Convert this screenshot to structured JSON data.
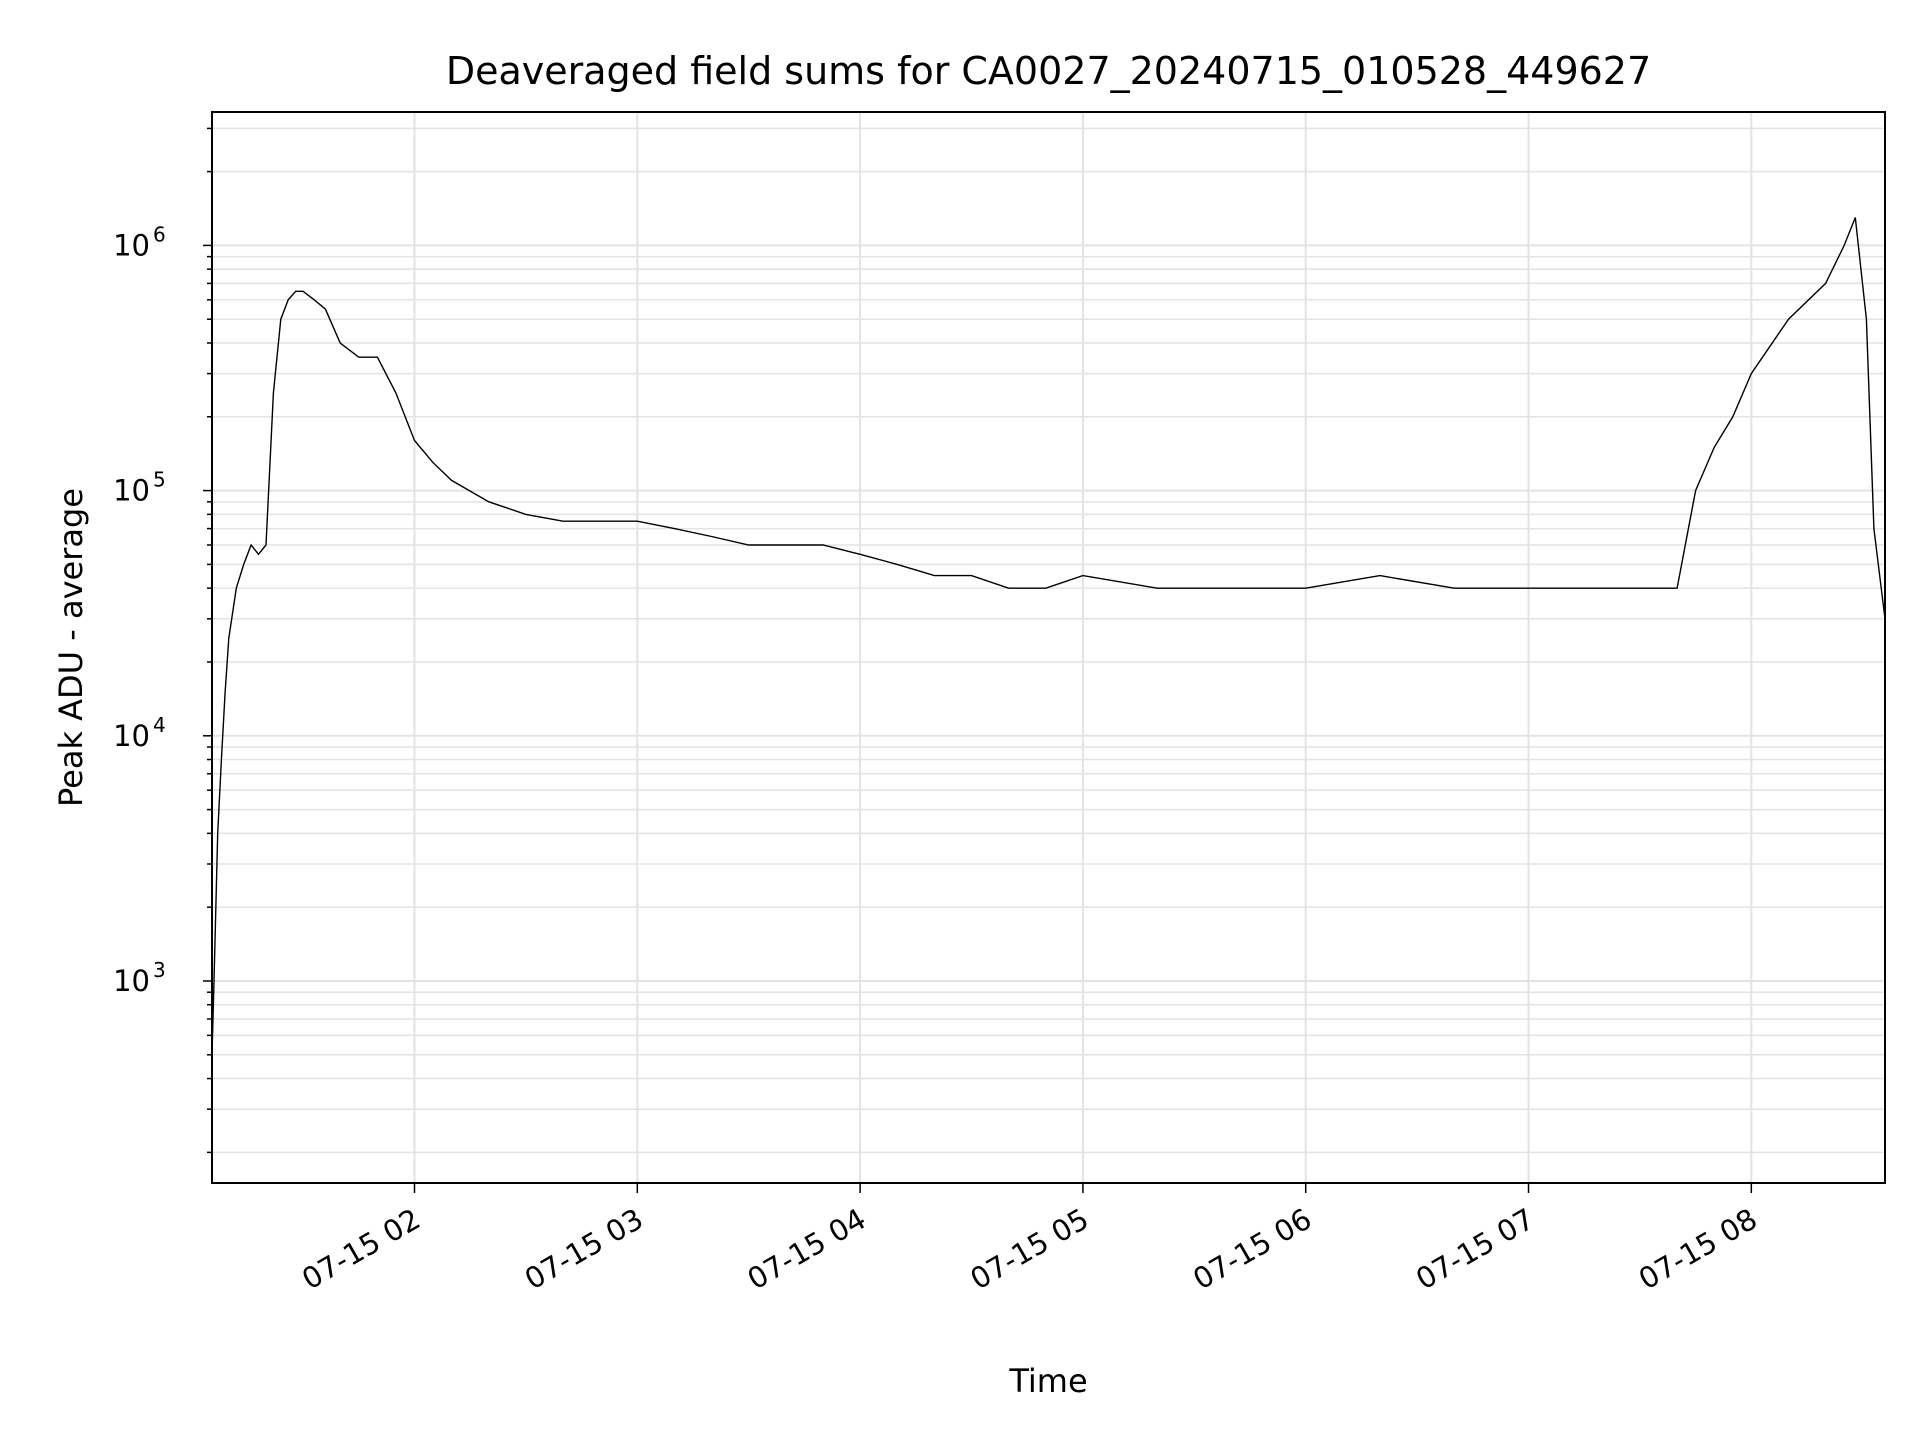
{
  "chart_data": {
    "type": "line",
    "title": "Deaveraged field sums for CA0027_20240715_010528_449627",
    "xlabel": "Time",
    "ylabel": "Peak ADU - average",
    "y_scale": "log",
    "ylim": [
      150,
      3500000
    ],
    "xlim": [
      "2024-07-15T01:05:28",
      "2024-07-15T08:36:00"
    ],
    "grid": true,
    "line_color": "#000000",
    "x_tick_labels": [
      "07-15 02",
      "07-15 03",
      "07-15 04",
      "07-15 05",
      "07-15 06",
      "07-15 07",
      "07-15 08"
    ],
    "y_tick_labels": [
      {
        "base": "10",
        "exp": "3"
      },
      {
        "base": "10",
        "exp": "4"
      },
      {
        "base": "10",
        "exp": "5"
      },
      {
        "base": "10",
        "exp": "6"
      }
    ],
    "series": [
      {
        "x": [
          "01:05:28",
          "01:06:00",
          "01:07:00",
          "01:08:00",
          "01:09:00",
          "01:10:00",
          "01:12:00",
          "01:14:00",
          "01:16:00",
          "01:18:00",
          "01:20:00",
          "01:22:00",
          "01:24:00",
          "01:26:00",
          "01:28:00",
          "01:30:00",
          "01:33:00",
          "01:36:00",
          "01:40:00",
          "01:45:00",
          "01:50:00",
          "01:55:00",
          "02:00:00",
          "02:05:00",
          "02:10:00",
          "02:20:00",
          "02:30:00",
          "02:40:00",
          "02:50:00",
          "03:00:00",
          "03:10:00",
          "03:20:00",
          "03:30:00",
          "03:40:00",
          "03:50:00",
          "04:00:00",
          "04:10:00",
          "04:20:00",
          "04:30:00",
          "04:40:00",
          "04:50:00",
          "05:00:00",
          "05:20:00",
          "05:40:00",
          "06:00:00",
          "06:20:00",
          "06:40:00",
          "07:00:00",
          "07:20:00",
          "07:30:00",
          "07:40:00",
          "07:45:00",
          "07:50:00",
          "07:55:00",
          "08:00:00",
          "08:10:00",
          "08:20:00",
          "08:25:00",
          "08:28:00",
          "08:31:00",
          "08:33:00",
          "08:36:00"
        ],
        "y": [
          500,
          1000,
          4000,
          8000,
          15000,
          25000,
          40000,
          50000,
          60000,
          55000,
          60000,
          250000,
          500000,
          600000,
          650000,
          650000,
          600000,
          550000,
          400000,
          350000,
          350000,
          250000,
          160000,
          130000,
          110000,
          90000,
          80000,
          75000,
          75000,
          75000,
          70000,
          65000,
          60000,
          60000,
          60000,
          55000,
          50000,
          45000,
          45000,
          40000,
          40000,
          45000,
          40000,
          40000,
          40000,
          45000,
          40000,
          40000,
          40000,
          40000,
          40000,
          100000,
          150000,
          200000,
          300000,
          500000,
          700000,
          1000000,
          1300000,
          500000,
          70000,
          30000
        ]
      }
    ]
  }
}
